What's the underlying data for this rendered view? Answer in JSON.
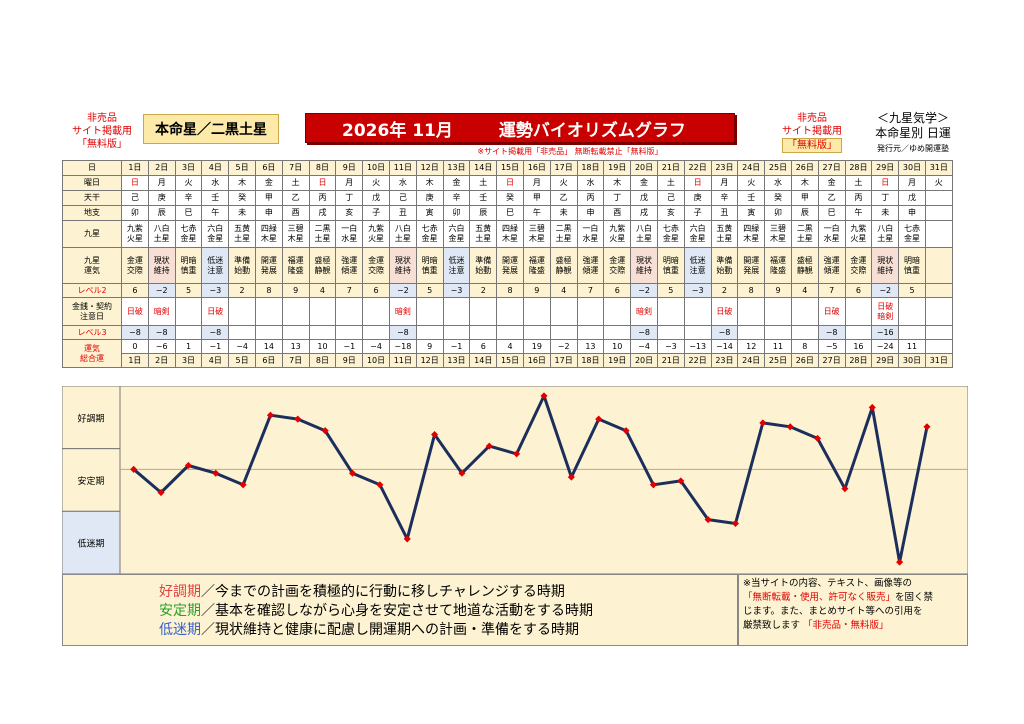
{
  "header": {
    "nonsale_left": [
      "非売品",
      "サイト掲載用",
      "「無料版」"
    ],
    "nonsale_right": [
      "非売品",
      "サイト掲載用",
      "「無料版」"
    ],
    "honmei": "本命星／二黒土星",
    "title_date": "2026年 11月",
    "title_main": "運勢バイオリズムグラフ",
    "subnote": "※サイト掲載用「非売品」 無断転載禁止「無料版」",
    "brand_title": "＜九星気学＞",
    "brand_sub": "本命星別 日運",
    "brand_pub": "発行元／ゆめ開運塾"
  },
  "table": {
    "row_labels": {
      "day": "日",
      "weekday": "曜日",
      "stem": "天干",
      "branch": "地支",
      "nine_star": [
        "九星"
      ],
      "fortune": [
        "九星",
        "運気"
      ],
      "level2": "レベル2",
      "money": [
        "金銭・契約",
        "注意日"
      ],
      "level3": "レベル3",
      "total": [
        "運気",
        "総合運"
      ]
    },
    "days": [
      "1日",
      "2日",
      "3日",
      "4日",
      "5日",
      "6日",
      "7日",
      "8日",
      "9日",
      "10日",
      "11日",
      "12日",
      "13日",
      "14日",
      "15日",
      "16日",
      "17日",
      "18日",
      "19日",
      "20日",
      "21日",
      "22日",
      "23日",
      "24日",
      "25日",
      "26日",
      "27日",
      "28日",
      "29日",
      "30日",
      "31日"
    ],
    "weekdays": [
      "日",
      "月",
      "火",
      "水",
      "木",
      "金",
      "土",
      "日",
      "月",
      "火",
      "水",
      "木",
      "金",
      "土",
      "日",
      "月",
      "火",
      "水",
      "木",
      "金",
      "土",
      "日",
      "月",
      "火",
      "水",
      "木",
      "金",
      "土",
      "日",
      "月",
      "火"
    ],
    "stems": [
      "己",
      "庚",
      "辛",
      "壬",
      "癸",
      "甲",
      "乙",
      "丙",
      "丁",
      "戊",
      "己",
      "庚",
      "辛",
      "壬",
      "癸",
      "甲",
      "乙",
      "丙",
      "丁",
      "戊",
      "己",
      "庚",
      "辛",
      "壬",
      "癸",
      "甲",
      "乙",
      "丙",
      "丁",
      "戊",
      ""
    ],
    "branches": [
      "卯",
      "辰",
      "巳",
      "午",
      "未",
      "申",
      "酉",
      "戌",
      "亥",
      "子",
      "丑",
      "寅",
      "卯",
      "辰",
      "巳",
      "午",
      "未",
      "申",
      "酉",
      "戌",
      "亥",
      "子",
      "丑",
      "寅",
      "卯",
      "辰",
      "巳",
      "午",
      "未",
      "申",
      ""
    ],
    "stars": [
      [
        "九紫",
        "火星"
      ],
      [
        "八白",
        "土星"
      ],
      [
        "七赤",
        "金星"
      ],
      [
        "六白",
        "金星"
      ],
      [
        "五黄",
        "土星"
      ],
      [
        "四緑",
        "木星"
      ],
      [
        "三碧",
        "木星"
      ],
      [
        "二黒",
        "土星"
      ],
      [
        "一白",
        "水星"
      ],
      [
        "九紫",
        "火星"
      ],
      [
        "八白",
        "土星"
      ],
      [
        "七赤",
        "金星"
      ],
      [
        "六白",
        "金星"
      ],
      [
        "五黄",
        "土星"
      ],
      [
        "四緑",
        "木星"
      ],
      [
        "三碧",
        "木星"
      ],
      [
        "二黒",
        "土星"
      ],
      [
        "一白",
        "水星"
      ],
      [
        "九紫",
        "火星"
      ],
      [
        "八白",
        "土星"
      ],
      [
        "七赤",
        "金星"
      ],
      [
        "六白",
        "金星"
      ],
      [
        "五黄",
        "土星"
      ],
      [
        "四緑",
        "木星"
      ],
      [
        "三碧",
        "木星"
      ],
      [
        "二黒",
        "土星"
      ],
      [
        "一白",
        "水星"
      ],
      [
        "九紫",
        "火星"
      ],
      [
        "八白",
        "土星"
      ],
      [
        "七赤",
        "金星"
      ],
      [
        "",
        ""
      ]
    ],
    "fortunes": [
      [
        "金運",
        "交際"
      ],
      [
        "現状",
        "維持"
      ],
      [
        "明暗",
        "慎重"
      ],
      [
        "低迷",
        "注意"
      ],
      [
        "準備",
        "始動"
      ],
      [
        "開運",
        "発展"
      ],
      [
        "福運",
        "隆盛"
      ],
      [
        "盛極",
        "静観"
      ],
      [
        "強運",
        "傾運"
      ],
      [
        "金運",
        "交際"
      ],
      [
        "現状",
        "維持"
      ],
      [
        "明暗",
        "慎重"
      ],
      [
        "低迷",
        "注意"
      ],
      [
        "準備",
        "始動"
      ],
      [
        "開運",
        "発展"
      ],
      [
        "福運",
        "隆盛"
      ],
      [
        "盛極",
        "静観"
      ],
      [
        "強運",
        "傾運"
      ],
      [
        "金運",
        "交際"
      ],
      [
        "現状",
        "維持"
      ],
      [
        "明暗",
        "慎重"
      ],
      [
        "低迷",
        "注意"
      ],
      [
        "準備",
        "始動"
      ],
      [
        "開運",
        "発展"
      ],
      [
        "福運",
        "隆盛"
      ],
      [
        "盛極",
        "静観"
      ],
      [
        "強運",
        "傾運"
      ],
      [
        "金運",
        "交際"
      ],
      [
        "現状",
        "維持"
      ],
      [
        "明暗",
        "慎重"
      ],
      [
        "",
        ""
      ]
    ],
    "fortune_tone": [
      "y",
      "p",
      "y",
      "b",
      "y",
      "y",
      "y",
      "y",
      "y",
      "y",
      "p",
      "y",
      "b",
      "y",
      "y",
      "y",
      "y",
      "y",
      "y",
      "p",
      "y",
      "b",
      "y",
      "y",
      "y",
      "y",
      "y",
      "y",
      "p",
      "y",
      "y"
    ],
    "level2": [
      "6",
      "−2",
      "5",
      "−3",
      "2",
      "8",
      "9",
      "4",
      "7",
      "6",
      "−2",
      "5",
      "−3",
      "2",
      "8",
      "9",
      "4",
      "7",
      "6",
      "−2",
      "5",
      "−3",
      "2",
      "8",
      "9",
      "4",
      "7",
      "6",
      "−2",
      "5",
      ""
    ],
    "money": [
      [
        "日破"
      ],
      [
        "暗剣"
      ],
      [
        ""
      ],
      [
        "日破"
      ],
      [
        ""
      ],
      [
        ""
      ],
      [
        ""
      ],
      [
        ""
      ],
      [
        ""
      ],
      [
        ""
      ],
      [
        "暗剣"
      ],
      [
        ""
      ],
      [
        ""
      ],
      [
        ""
      ],
      [
        ""
      ],
      [
        ""
      ],
      [
        ""
      ],
      [
        ""
      ],
      [
        ""
      ],
      [
        "暗剣"
      ],
      [
        ""
      ],
      [
        ""
      ],
      [
        "日破"
      ],
      [
        ""
      ],
      [
        ""
      ],
      [
        ""
      ],
      [
        "日破"
      ],
      [
        ""
      ],
      [
        "日破",
        "暗剣"
      ],
      [
        ""
      ],
      [
        ""
      ]
    ],
    "level3": [
      "−8",
      "−8",
      "",
      "−8",
      "",
      "",
      "",
      "",
      "",
      "",
      "−8",
      "",
      "",
      "",
      "",
      "",
      "",
      "",
      "",
      "−8",
      "",
      "",
      "−8",
      "",
      "",
      "",
      "−8",
      "",
      "−16",
      "",
      ""
    ],
    "total": [
      "0",
      "−6",
      "1",
      "−1",
      "−4",
      "14",
      "13",
      "10",
      "−1",
      "−4",
      "−18",
      "9",
      "−1",
      "6",
      "4",
      "19",
      "−2",
      "13",
      "10",
      "−4",
      "−3",
      "−13",
      "−14",
      "12",
      "11",
      "8",
      "−5",
      "16",
      "−24",
      "11",
      ""
    ]
  },
  "graph": {
    "bands": [
      "好調期",
      "安定期",
      "低迷期"
    ]
  },
  "chart_data": {
    "type": "line",
    "title": "運勢バイオリズムグラフ",
    "x": [
      "1日",
      "2日",
      "3日",
      "4日",
      "5日",
      "6日",
      "7日",
      "8日",
      "9日",
      "10日",
      "11日",
      "12日",
      "13日",
      "14日",
      "15日",
      "16日",
      "17日",
      "18日",
      "19日",
      "20日",
      "21日",
      "22日",
      "23日",
      "24日",
      "25日",
      "26日",
      "27日",
      "28日",
      "29日",
      "30日"
    ],
    "series": [
      {
        "name": "運気総合運",
        "values": [
          0,
          -6,
          1,
          -1,
          -4,
          14,
          13,
          10,
          -1,
          -4,
          -18,
          9,
          -1,
          6,
          4,
          19,
          -2,
          13,
          10,
          -4,
          -3,
          -13,
          -14,
          12,
          11,
          8,
          -5,
          16,
          -24,
          11
        ]
      }
    ],
    "ylim": [
      -25,
      20
    ],
    "baseline": 0,
    "bands": [
      {
        "label": "好調期"
      },
      {
        "label": "安定期"
      },
      {
        "label": "低迷期"
      }
    ],
    "line_color": "#1c2e5c",
    "marker_color": "#e00000"
  },
  "legend": {
    "good_term": "好調期",
    "good_text": "／今までの計画を積極的に行動に移しチャレンジする時期",
    "stable_term": "安定期",
    "stable_text": "／基本を確認しながら心身を安定させて地道な活動をする時期",
    "low_term": "低迷期",
    "low_text": "／現状維持と健康に配慮し開運期への計画・準備をする時期"
  },
  "notice": {
    "line1": "※当サイトの内容、テキスト、画像等の",
    "line2a": "「無断転載・使用、許可なく販売」",
    "line2b": "を固く禁",
    "line3": "じます。また、まとめサイト等への引用を",
    "line4a": "厳禁致します",
    "line4b": "「非売品・無料版」"
  },
  "colors": {
    "banner": "#c80000",
    "cream": "#fdf3d2",
    "blue": "#dfe8f4",
    "pink": "#f7dfd6",
    "accent_red": "#e00000"
  }
}
